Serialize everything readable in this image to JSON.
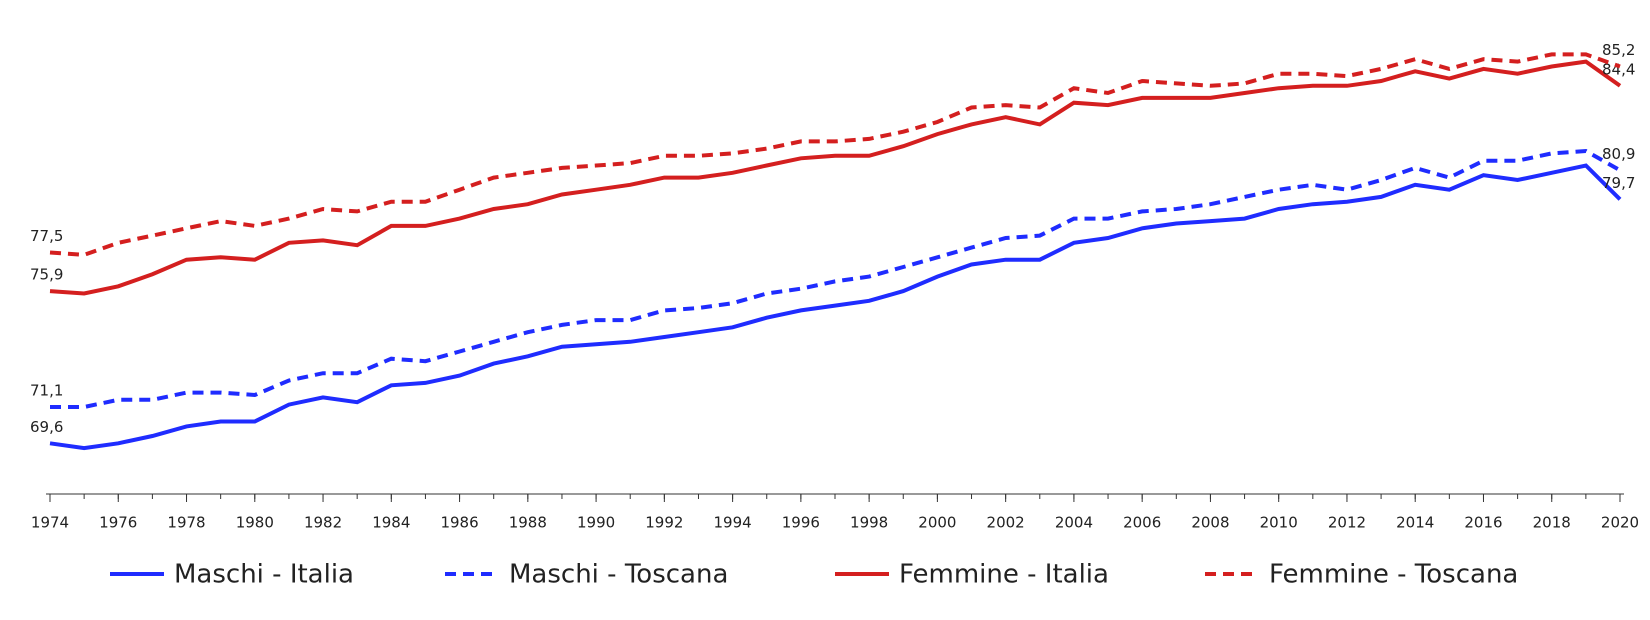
{
  "chart_data": {
    "type": "line",
    "x": [
      1974,
      1975,
      1976,
      1977,
      1978,
      1979,
      1980,
      1981,
      1982,
      1983,
      1984,
      1985,
      1986,
      1987,
      1988,
      1989,
      1990,
      1991,
      1992,
      1993,
      1994,
      1995,
      1996,
      1997,
      1998,
      1999,
      2000,
      2001,
      2002,
      2003,
      2004,
      2005,
      2006,
      2007,
      2008,
      2009,
      2010,
      2011,
      2012,
      2013,
      2014,
      2015,
      2016,
      2017,
      2018,
      2019,
      2020
    ],
    "xlim": [
      1974,
      2020
    ],
    "xticks": [
      1974,
      1976,
      1978,
      1980,
      1982,
      1984,
      1986,
      1988,
      1990,
      1992,
      1994,
      1996,
      1998,
      2000,
      2002,
      2004,
      2006,
      2008,
      2010,
      2012,
      2014,
      2016,
      2018,
      2020
    ],
    "ylim": [
      67.5,
      87
    ],
    "series": [
      {
        "name": "Maschi - Italia",
        "color": "#1f2cff",
        "dashed": false,
        "values": [
          69.6,
          69.4,
          69.6,
          69.9,
          70.3,
          70.5,
          70.5,
          71.2,
          71.5,
          71.3,
          72.0,
          72.1,
          72.4,
          72.9,
          73.2,
          73.6,
          73.7,
          73.8,
          74.0,
          74.2,
          74.4,
          74.8,
          75.1,
          75.3,
          75.5,
          75.9,
          76.5,
          77.0,
          77.2,
          77.2,
          77.9,
          78.1,
          78.5,
          78.7,
          78.8,
          78.9,
          79.3,
          79.5,
          79.6,
          79.8,
          80.3,
          80.1,
          80.7,
          80.5,
          80.8,
          81.1,
          79.7
        ],
        "value_labels": [
          "69,6",
          null,
          null,
          null,
          null,
          null,
          null,
          null,
          null,
          null,
          null,
          null,
          null,
          null,
          null,
          null,
          null,
          null,
          null,
          null,
          null,
          null,
          null,
          null,
          null,
          null,
          null,
          null,
          null,
          null,
          null,
          null,
          null,
          null,
          null,
          null,
          null,
          null,
          null,
          null,
          null,
          null,
          null,
          null,
          null,
          null,
          "79,7"
        ]
      },
      {
        "name": "Maschi - Toscana",
        "color": "#1f2cff",
        "dashed": true,
        "values": [
          71.1,
          71.1,
          71.4,
          71.4,
          71.7,
          71.7,
          71.6,
          72.2,
          72.5,
          72.5,
          73.1,
          73.0,
          73.4,
          73.8,
          74.2,
          74.5,
          74.7,
          74.7,
          75.1,
          75.2,
          75.4,
          75.8,
          76.0,
          76.3,
          76.5,
          76.9,
          77.3,
          77.7,
          78.1,
          78.2,
          78.9,
          78.9,
          79.2,
          79.3,
          79.5,
          79.8,
          80.1,
          80.3,
          80.1,
          80.5,
          81.0,
          80.6,
          81.3,
          81.3,
          81.6,
          81.7,
          80.9
        ],
        "value_labels": [
          "71,1",
          null,
          null,
          null,
          null,
          null,
          null,
          null,
          null,
          null,
          null,
          null,
          null,
          null,
          null,
          null,
          null,
          null,
          null,
          null,
          null,
          null,
          null,
          null,
          null,
          null,
          null,
          null,
          null,
          null,
          null,
          null,
          null,
          null,
          null,
          null,
          null,
          null,
          null,
          null,
          null,
          null,
          null,
          null,
          null,
          null,
          "80,9"
        ]
      },
      {
        "name": "Femmine - Italia",
        "color": "#d41f1f",
        "dashed": false,
        "values": [
          75.9,
          75.8,
          76.1,
          76.6,
          77.2,
          77.3,
          77.2,
          77.9,
          78.0,
          77.8,
          78.6,
          78.6,
          78.9,
          79.3,
          79.5,
          79.9,
          80.1,
          80.3,
          80.6,
          80.6,
          80.8,
          81.1,
          81.4,
          81.5,
          81.5,
          81.9,
          82.4,
          82.8,
          83.1,
          82.8,
          83.7,
          83.6,
          83.9,
          83.9,
          83.9,
          84.1,
          84.3,
          84.4,
          84.4,
          84.6,
          85.0,
          84.7,
          85.1,
          84.9,
          85.2,
          85.4,
          84.4
        ],
        "value_labels": [
          "75,9",
          null,
          null,
          null,
          null,
          null,
          null,
          null,
          null,
          null,
          null,
          null,
          null,
          null,
          null,
          null,
          null,
          null,
          null,
          null,
          null,
          null,
          null,
          null,
          null,
          null,
          null,
          null,
          null,
          null,
          null,
          null,
          null,
          null,
          null,
          null,
          null,
          null,
          null,
          null,
          null,
          null,
          null,
          null,
          null,
          null,
          "84,4"
        ]
      },
      {
        "name": "Femmine - Toscana",
        "color": "#d41f1f",
        "dashed": true,
        "values": [
          77.5,
          77.4,
          77.9,
          78.2,
          78.5,
          78.8,
          78.6,
          78.9,
          79.3,
          79.2,
          79.6,
          79.6,
          80.1,
          80.6,
          80.8,
          81.0,
          81.1,
          81.2,
          81.5,
          81.5,
          81.6,
          81.8,
          82.1,
          82.1,
          82.2,
          82.5,
          82.9,
          83.5,
          83.6,
          83.5,
          84.3,
          84.1,
          84.6,
          84.5,
          84.4,
          84.5,
          84.9,
          84.9,
          84.8,
          85.1,
          85.5,
          85.1,
          85.5,
          85.4,
          85.7,
          85.7,
          85.2
        ],
        "value_labels": [
          "77,5",
          null,
          null,
          null,
          null,
          null,
          null,
          null,
          null,
          null,
          null,
          null,
          null,
          null,
          null,
          null,
          null,
          null,
          null,
          null,
          null,
          null,
          null,
          null,
          null,
          null,
          null,
          null,
          null,
          null,
          null,
          null,
          null,
          null,
          null,
          null,
          null,
          null,
          null,
          null,
          null,
          null,
          null,
          null,
          null,
          null,
          "85,2"
        ]
      }
    ]
  }
}
